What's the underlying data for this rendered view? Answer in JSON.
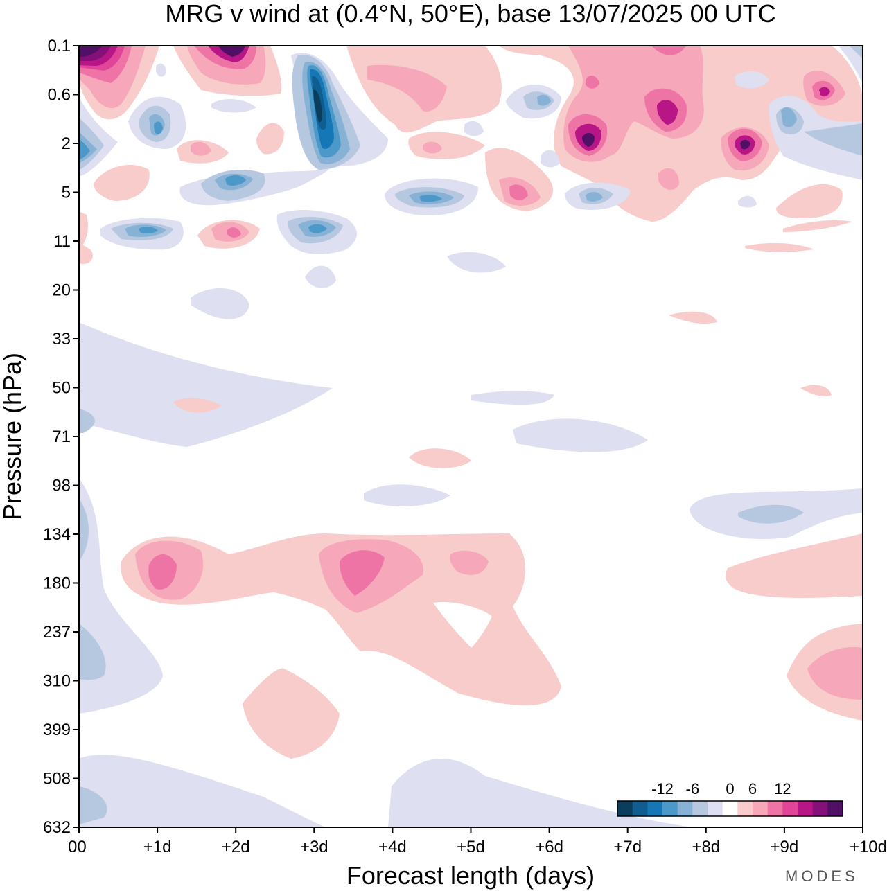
{
  "chart_data": {
    "type": "heatmap",
    "title": "MRG v wind at (0.4°N, 50°E),  base 13/07/2025  00 UTC",
    "xlabel": "Forecast length (days)",
    "ylabel": "Pressure (hPa)",
    "x_ticks": [
      "00",
      "+1d",
      "+2d",
      "+3d",
      "+4d",
      "+5d",
      "+6d",
      "+7d",
      "+8d",
      "+9d",
      "+10d"
    ],
    "y_ticks": [
      "0.1",
      "0.6",
      "2",
      "5",
      "11",
      "20",
      "33",
      "50",
      "71",
      "98",
      "134",
      "180",
      "237",
      "310",
      "399",
      "508",
      "632"
    ],
    "xlim": [
      0,
      10
    ],
    "colorbar": {
      "labels": [
        "-12",
        "-6",
        "0",
        "6",
        "12"
      ],
      "levels": [
        -15,
        -12,
        -9,
        -6,
        -3,
        0,
        3,
        6,
        9,
        12,
        15
      ],
      "colors": [
        "#0b3d5c",
        "#0f5e8f",
        "#1577b5",
        "#4c98c9",
        "#87b2d6",
        "#b6c8e0",
        "#dedff0",
        "#ffffff",
        "#f9cccc",
        "#f6a7ba",
        "#ef74a6",
        "#e04597",
        "#b81687",
        "#85107a",
        "#4f1065"
      ]
    },
    "contour_features": [
      {
        "x_day": 0.25,
        "level": "0.1-0.6",
        "value": 15
      },
      {
        "x_day": 2.0,
        "level": "0.1",
        "value": 14
      },
      {
        "x_day": 3.0,
        "level": "0.6-2",
        "value": -15
      },
      {
        "x_day": 0.0,
        "level": "2",
        "value": -9
      },
      {
        "x_day": 1.0,
        "level": "1-2",
        "value": -9
      },
      {
        "x_day": 2.0,
        "level": "5",
        "value": -9
      },
      {
        "x_day": 3.0,
        "level": "11",
        "value": -9
      },
      {
        "x_day": 1.0,
        "level": "11",
        "value": -9
      },
      {
        "x_day": 4.5,
        "level": "5",
        "value": -9
      },
      {
        "x_day": 6.5,
        "level": "2",
        "value": 15
      },
      {
        "x_day": 7.5,
        "level": "1",
        "value": 12
      },
      {
        "x_day": 8.5,
        "level": "2",
        "value": 15
      },
      {
        "x_day": 9.5,
        "level": "0.6",
        "value": 12
      },
      {
        "x_day": 1.0,
        "level": "180",
        "value": 9
      },
      {
        "x_day": 3.5,
        "level": "180",
        "value": 9
      },
      {
        "x_day": 9.8,
        "level": "310",
        "value": 6
      },
      {
        "x_day": 8.0,
        "level": "134",
        "value": -6
      }
    ]
  },
  "brand": "MODES"
}
